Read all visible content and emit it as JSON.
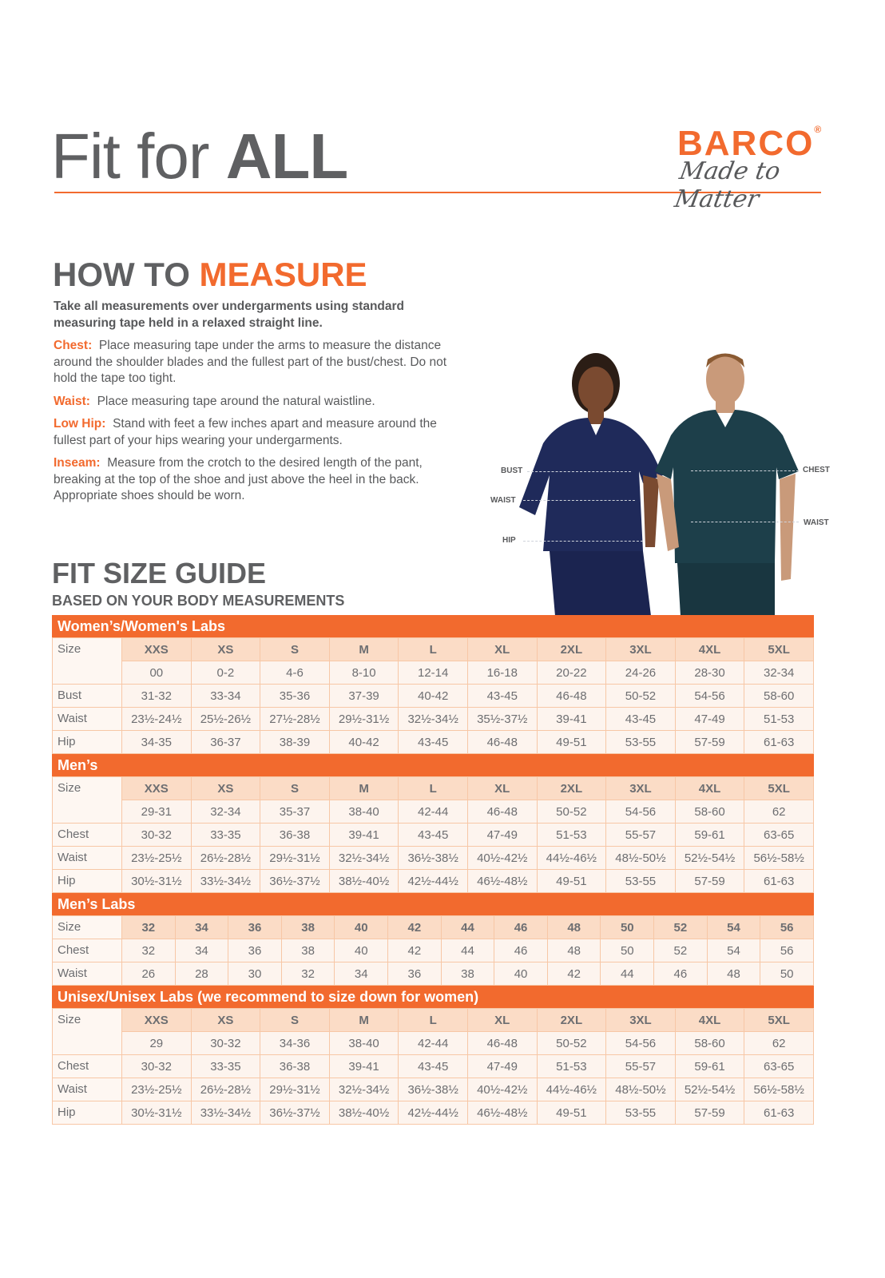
{
  "header": {
    "title_light": "Fit for ",
    "title_bold": "ALL",
    "brand": "BARCO",
    "brand_mark": "®",
    "tagline": "Made to Matter"
  },
  "how_to": {
    "title_a": "HOW TO ",
    "title_b": "MEASURE",
    "intro": "Take all measurements over undergarments using standard measuring tape held in a relaxed straight line.",
    "items": [
      {
        "term": "Chest:",
        "text": "Place measuring tape under the arms to measure the distance around the shoulder blades and the fullest part of the bust/chest. Do not hold the tape too tight."
      },
      {
        "term": "Waist:",
        "text": "Place measuring tape around the natural waistline."
      },
      {
        "term": "Low Hip:",
        "text": "Stand with feet a few inches apart and measure around the fullest part of your hips wearing your undergarments."
      },
      {
        "term": "Inseam:",
        "text": "Measure from the crotch to the desired length of the pant, breaking at the top of the shoe and just above the heel in the back. Appropriate shoes should be worn."
      }
    ]
  },
  "figure_labels": {
    "bust": "BUST",
    "waist_w": "WAIST",
    "hip": "HIP",
    "chest": "CHEST",
    "waist_m": "WAIST"
  },
  "colors": {
    "accent": "#f26a2e",
    "text": "#58595b",
    "scrub_women": "#1f2a5a",
    "scrub_men": "#1d3f4a"
  },
  "guide": {
    "title": "FIT SIZE GUIDE",
    "subtitle": "BASED ON YOUR BODY MEASUREMENTS"
  },
  "tables": [
    {
      "name": "Women’s/Women's Labs",
      "rows": [
        {
          "label": "Size",
          "values": [
            "XXS",
            "XS",
            "S",
            "M",
            "L",
            "XL",
            "2XL",
            "3XL",
            "4XL",
            "5XL"
          ]
        },
        {
          "label": "",
          "values": [
            "00",
            "0-2",
            "4-6",
            "8-10",
            "12-14",
            "16-18",
            "20-22",
            "24-26",
            "28-30",
            "32-34"
          ]
        },
        {
          "label": "Bust",
          "values": [
            "31-32",
            "33-34",
            "35-36",
            "37-39",
            "40-42",
            "43-45",
            "46-48",
            "50-52",
            "54-56",
            "58-60"
          ]
        },
        {
          "label": "Waist",
          "values": [
            "23½-24½",
            "25½-26½",
            "27½-28½",
            "29½-31½",
            "32½-34½",
            "35½-37½",
            "39-41",
            "43-45",
            "47-49",
            "51-53"
          ]
        },
        {
          "label": "Hip",
          "values": [
            "34-35",
            "36-37",
            "38-39",
            "40-42",
            "43-45",
            "46-48",
            "49-51",
            "53-55",
            "57-59",
            "61-63"
          ]
        }
      ]
    },
    {
      "name": "Men’s",
      "rows": [
        {
          "label": "Size",
          "values": [
            "XXS",
            "XS",
            "S",
            "M",
            "L",
            "XL",
            "2XL",
            "3XL",
            "4XL",
            "5XL"
          ]
        },
        {
          "label": "",
          "values": [
            "29-31",
            "32-34",
            "35-37",
            "38-40",
            "42-44",
            "46-48",
            "50-52",
            "54-56",
            "58-60",
            "62"
          ]
        },
        {
          "label": "Chest",
          "values": [
            "30-32",
            "33-35",
            "36-38",
            "39-41",
            "43-45",
            "47-49",
            "51-53",
            "55-57",
            "59-61",
            "63-65"
          ]
        },
        {
          "label": "Waist",
          "values": [
            "23½-25½",
            "26½-28½",
            "29½-31½",
            "32½-34½",
            "36½-38½",
            "40½-42½",
            "44½-46½",
            "48½-50½",
            "52½-54½",
            "56½-58½"
          ]
        },
        {
          "label": "Hip",
          "values": [
            "30½-31½",
            "33½-34½",
            "36½-37½",
            "38½-40½",
            "42½-44½",
            "46½-48½",
            "49-51",
            "53-55",
            "57-59",
            "61-63"
          ]
        }
      ]
    },
    {
      "name": "Men’s Labs",
      "rows": [
        {
          "label": "Size",
          "values": [
            "32",
            "34",
            "36",
            "38",
            "40",
            "42",
            "44",
            "46",
            "48",
            "50",
            "52",
            "54",
            "56"
          ]
        },
        {
          "label": "Chest",
          "values": [
            "32",
            "34",
            "36",
            "38",
            "40",
            "42",
            "44",
            "46",
            "48",
            "50",
            "52",
            "54",
            "56"
          ]
        },
        {
          "label": "Waist",
          "values": [
            "26",
            "28",
            "30",
            "32",
            "34",
            "36",
            "38",
            "40",
            "42",
            "44",
            "46",
            "48",
            "50"
          ]
        }
      ]
    },
    {
      "name": "Unisex/Unisex Labs (we recommend to size down for women)",
      "rows": [
        {
          "label": "Size",
          "values": [
            "XXS",
            "XS",
            "S",
            "M",
            "L",
            "XL",
            "2XL",
            "3XL",
            "4XL",
            "5XL"
          ]
        },
        {
          "label": "",
          "values": [
            "29",
            "30-32",
            "34-36",
            "38-40",
            "42-44",
            "46-48",
            "50-52",
            "54-56",
            "58-60",
            "62"
          ]
        },
        {
          "label": "Chest",
          "values": [
            "30-32",
            "33-35",
            "36-38",
            "39-41",
            "43-45",
            "47-49",
            "51-53",
            "55-57",
            "59-61",
            "63-65"
          ]
        },
        {
          "label": "Waist",
          "values": [
            "23½-25½",
            "26½-28½",
            "29½-31½",
            "32½-34½",
            "36½-38½",
            "40½-42½",
            "44½-46½",
            "48½-50½",
            "52½-54½",
            "56½-58½"
          ]
        },
        {
          "label": "Hip",
          "values": [
            "30½-31½",
            "33½-34½",
            "36½-37½",
            "38½-40½",
            "42½-44½",
            "46½-48½",
            "49-51",
            "53-55",
            "57-59",
            "61-63"
          ]
        }
      ]
    }
  ]
}
